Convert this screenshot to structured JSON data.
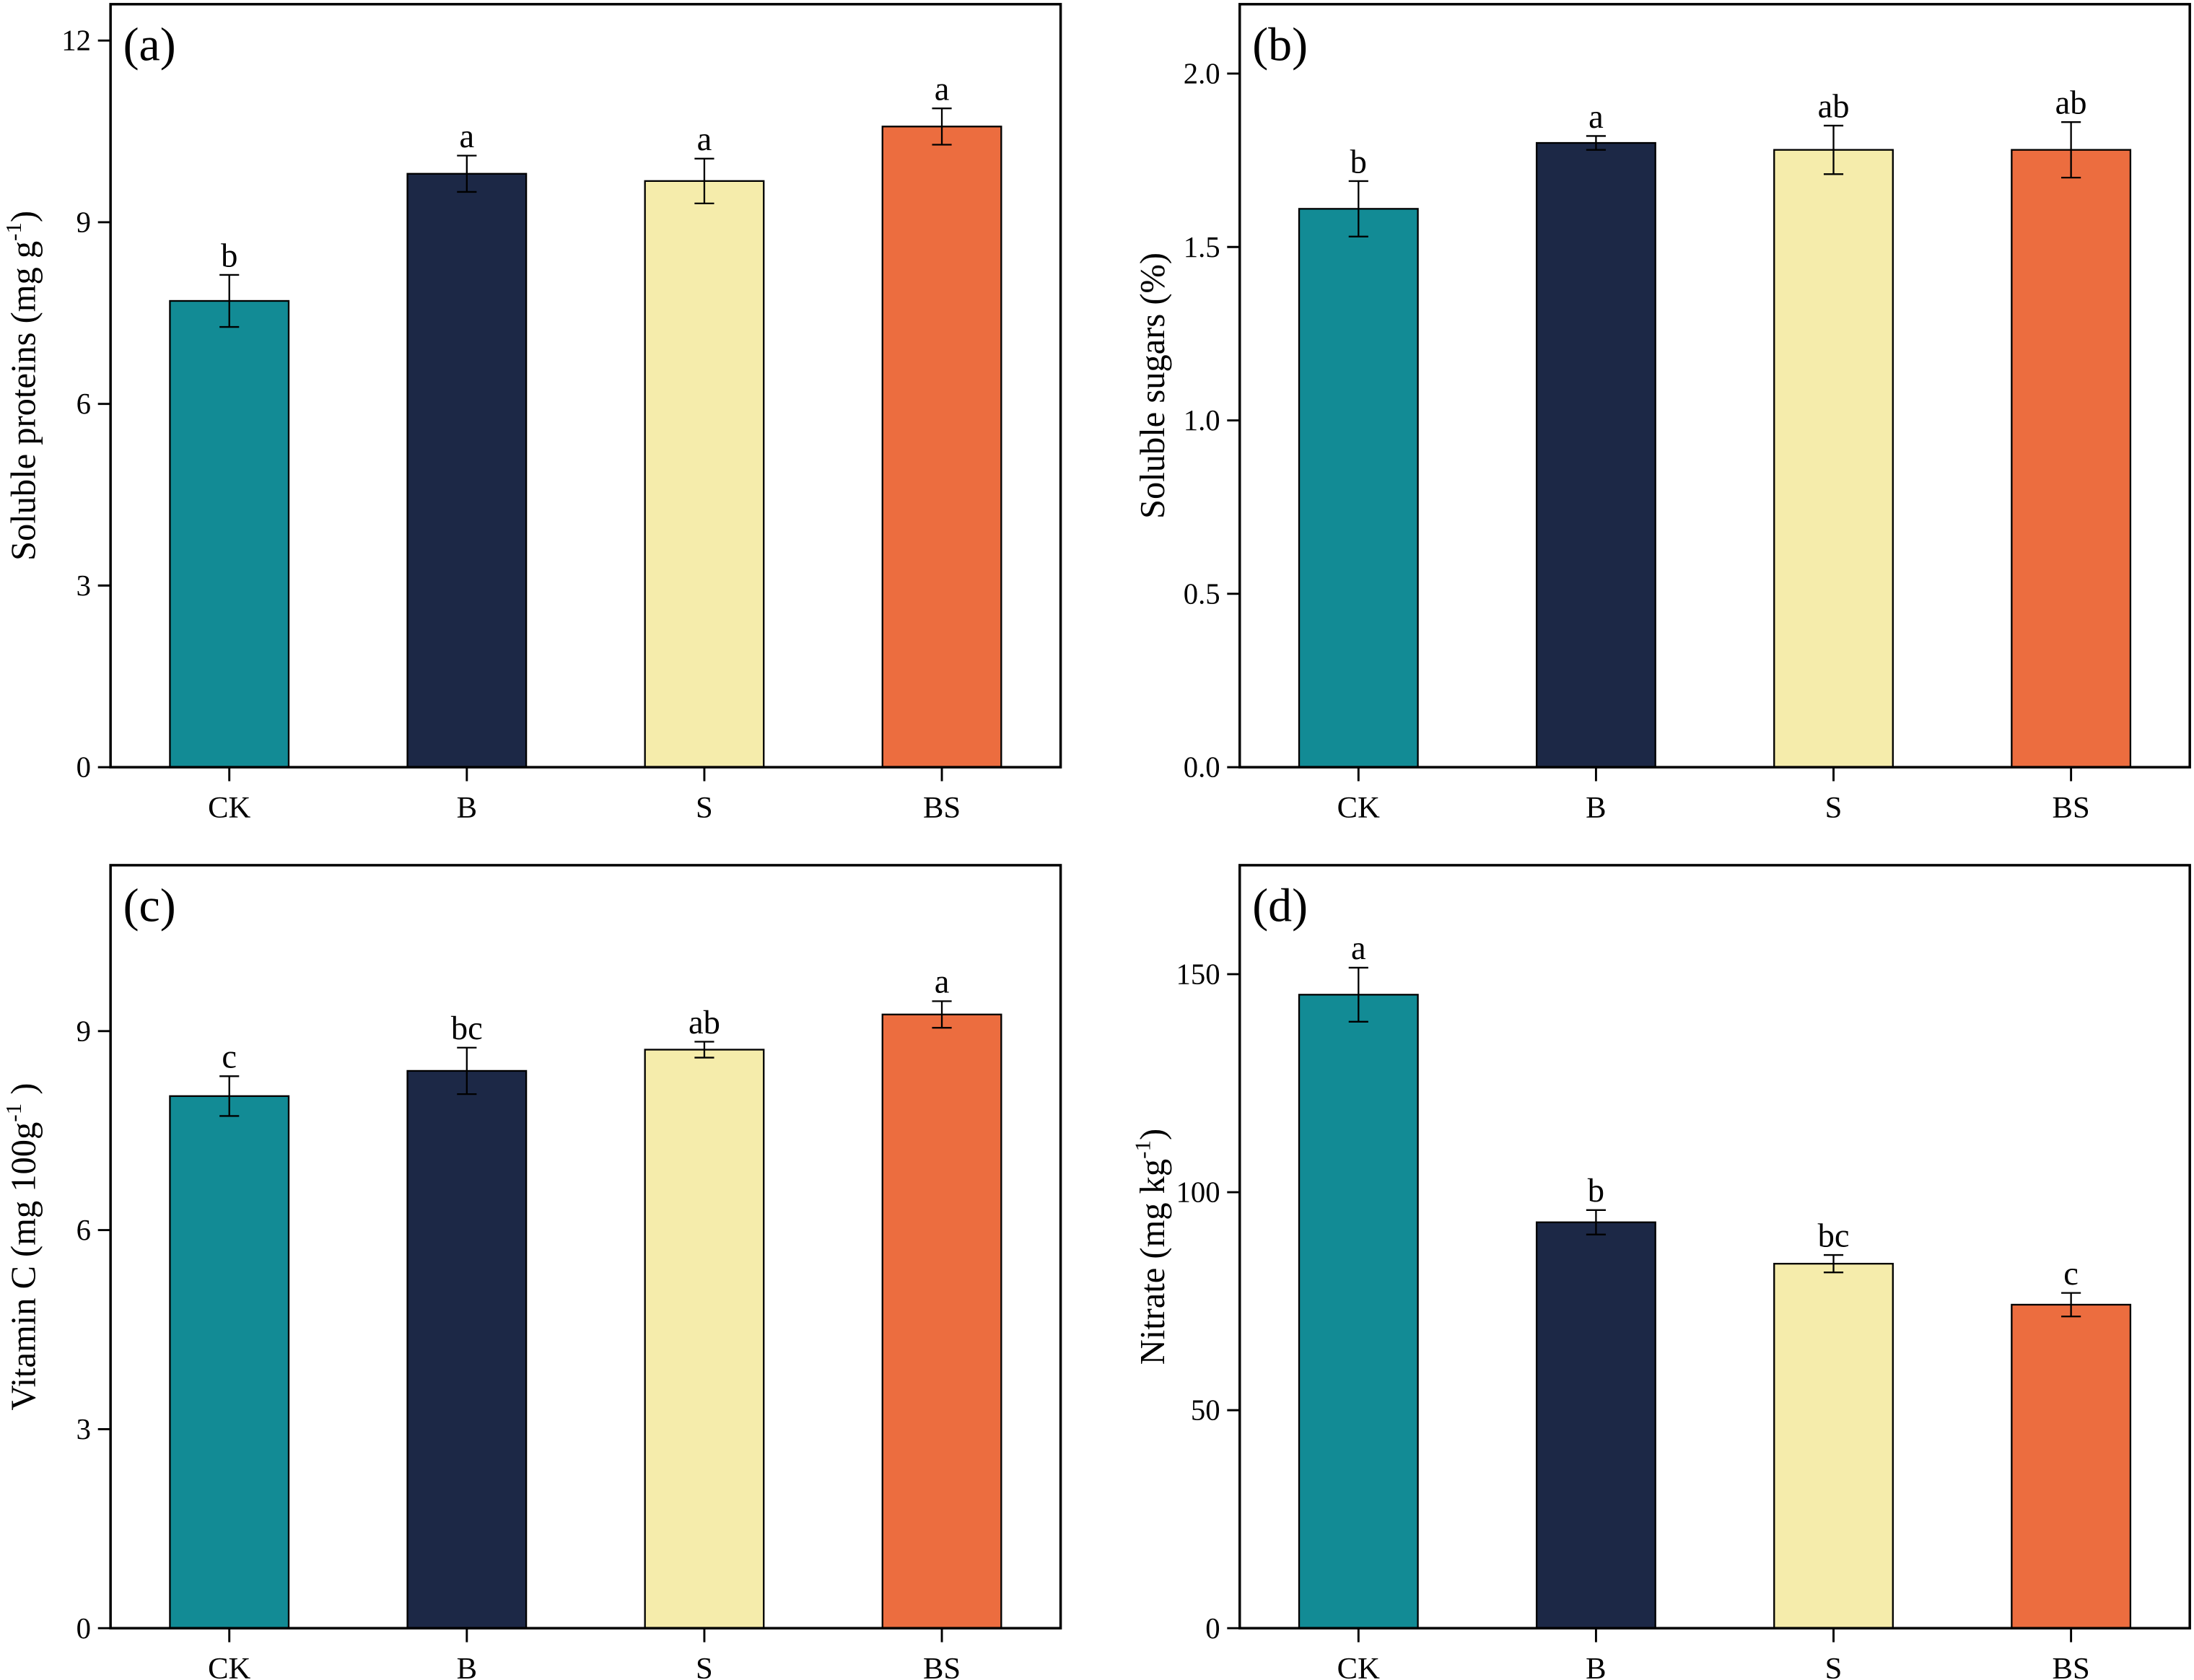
{
  "colors": {
    "CK": "#128b95",
    "B": "#1c2846",
    "S": "#f5ecab",
    "BS": "#ec6d3f",
    "axis": "#000000"
  },
  "chart_data": [
    {
      "type": "bar",
      "panel_label": "(a)",
      "ylabel": {
        "text": "Soluble proteins (mg g",
        "sup": "-1",
        "end": ")"
      },
      "categories": [
        "CK",
        "B",
        "S",
        "BS"
      ],
      "values": [
        7.7,
        9.8,
        9.68,
        10.58
      ],
      "errors": [
        0.43,
        0.3,
        0.37,
        0.3
      ],
      "letters": [
        "b",
        "a",
        "a",
        "a"
      ],
      "ylim": [
        0,
        12.6
      ],
      "yticks": [
        0,
        3,
        6,
        9,
        12
      ],
      "ytick_labels": [
        "0",
        "3",
        "6",
        "9",
        "12"
      ]
    },
    {
      "type": "bar",
      "panel_label": "(b)",
      "ylabel": {
        "text": "Soluble sugars (%)",
        "sup": "",
        "end": ""
      },
      "categories": [
        "CK",
        "B",
        "S",
        "BS"
      ],
      "values": [
        1.61,
        1.8,
        1.78,
        1.78
      ],
      "errors": [
        0.08,
        0.02,
        0.07,
        0.08
      ],
      "letters": [
        "b",
        "a",
        "ab",
        "ab"
      ],
      "ylim": [
        0,
        2.2
      ],
      "yticks": [
        0,
        0.5,
        1.0,
        1.5,
        2.0
      ],
      "ytick_labels": [
        "0.0",
        "0.5",
        "1.0",
        "1.5",
        "2.0"
      ]
    },
    {
      "type": "bar",
      "panel_label": "(c)",
      "ylabel": {
        "text": "Vitamin C (mg 100g",
        "sup": "-1",
        "end": " )"
      },
      "categories": [
        "CK",
        "B",
        "S",
        "BS"
      ],
      "values": [
        8.02,
        8.4,
        8.72,
        9.25
      ],
      "errors": [
        0.3,
        0.35,
        0.12,
        0.2
      ],
      "letters": [
        "c",
        "bc",
        "ab",
        "a"
      ],
      "ylim": [
        0,
        11.5
      ],
      "yticks": [
        0,
        3,
        6,
        9
      ],
      "ytick_labels": [
        "0",
        "3",
        "6",
        "9"
      ]
    },
    {
      "type": "bar",
      "panel_label": "(d)",
      "ylabel": {
        "text": "Nitrate (mg kg",
        "sup": "-1",
        "end": ")"
      },
      "categories": [
        "CK",
        "B",
        "S",
        "BS"
      ],
      "values": [
        145.3,
        93.1,
        83.6,
        74.2
      ],
      "errors": [
        6.2,
        2.8,
        2.0,
        2.7
      ],
      "letters": [
        "a",
        "b",
        "bc",
        "c"
      ],
      "ylim": [
        0,
        175
      ],
      "yticks": [
        0,
        50,
        100,
        150
      ],
      "ytick_labels": [
        "0",
        "50",
        "100",
        "150"
      ]
    }
  ]
}
